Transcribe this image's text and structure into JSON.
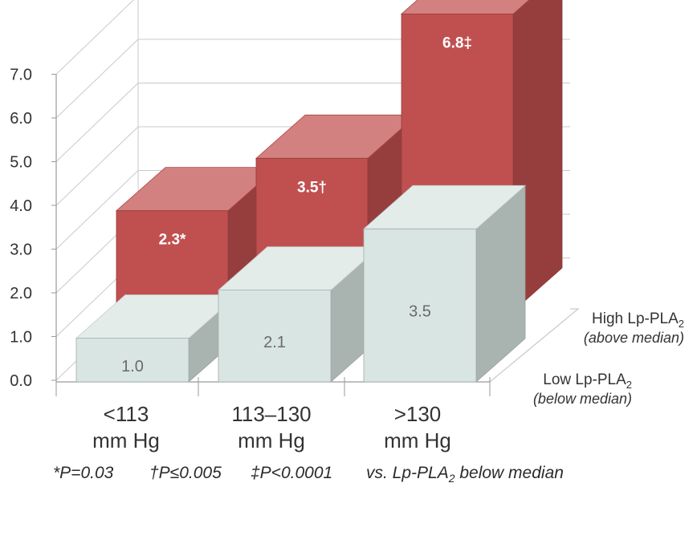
{
  "chart_data": {
    "type": "bar",
    "variant": "3d-grouped-bars",
    "title": "",
    "xlabel": "",
    "ylabel": "",
    "ylim": [
      0,
      7
    ],
    "yticks": [
      "0.0",
      "1.0",
      "2.0",
      "3.0",
      "4.0",
      "5.0",
      "6.0",
      "7.0"
    ],
    "categories": [
      {
        "line1": "<113",
        "line2": "mm Hg"
      },
      {
        "line1": "113–130",
        "line2": "mm Hg"
      },
      {
        "line1": ">130",
        "line2": "mm Hg"
      }
    ],
    "series": [
      {
        "name": "High Lp-PLA",
        "name_subscript": "2",
        "qualifier": "(above median)",
        "color": "#c0504f",
        "values": [
          2.3,
          3.5,
          6.8
        ],
        "labels": [
          "2.3*",
          "3.5†",
          "6.8‡"
        ]
      },
      {
        "name": "Low Lp-PLA",
        "name_subscript": "2",
        "qualifier": "(below median)",
        "color": "#d9e5e2",
        "values": [
          1.0,
          2.1,
          3.5
        ],
        "labels": [
          "1.0",
          "2.1",
          "3.5"
        ]
      }
    ],
    "grid": true
  },
  "footnotes": [
    {
      "text": "*P=0.03"
    },
    {
      "text": "†P≤0.005"
    },
    {
      "text": "‡P<0.0001"
    },
    {
      "pre": "vs. Lp-PLA",
      "sub": "2",
      "post": " below median"
    }
  ]
}
